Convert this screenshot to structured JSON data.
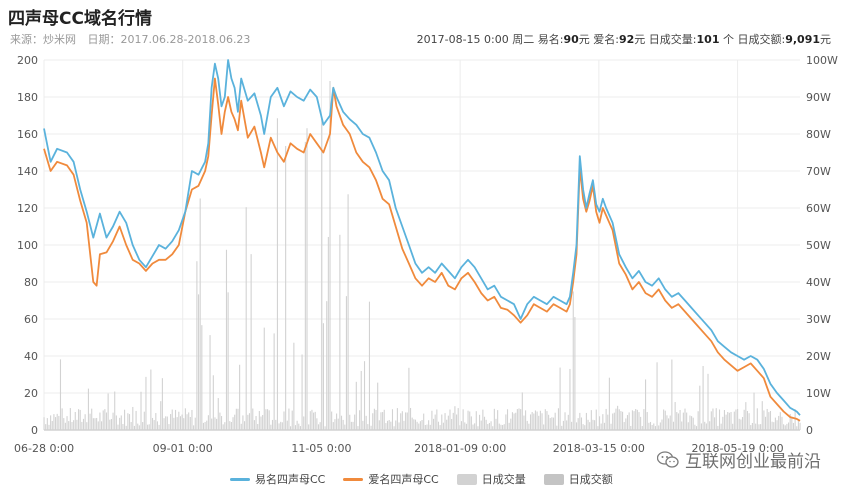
{
  "header": {
    "title": "四声母CC域名行情",
    "source_label": "来源：",
    "source": "炒米网",
    "date_label": "日期：",
    "date_range": "2017.06.28-2018.06.23"
  },
  "info": {
    "datetime": "2017-08-15 0:00 周二",
    "yiming_label": "易名:",
    "yiming_value": "90",
    "yiming_unit": "元",
    "aiming_label": "爱名:",
    "aiming_value": "92",
    "aiming_unit": "元",
    "volume_label": "日成交量:",
    "volume_value": "101",
    "volume_unit": "个",
    "amount_label": "日成交额:",
    "amount_value": "9,091",
    "amount_unit": "元"
  },
  "watermark": {
    "text": "互联网创业最前沿",
    "icon": "wechat-icon"
  },
  "colors": {
    "yiming": "#5ab2dc",
    "aiming": "#f08a3c",
    "volume": "#d2d2d2",
    "amount": "#c4c4c4"
  },
  "chart_data": {
    "type": "line",
    "title": "四声母CC域名行情",
    "x_ticks": [
      "06-28 0:00",
      "09-01 0:00",
      "11-05 0:00",
      "2018-01-09 0:00",
      "2018-03-15 0:00",
      "2018-05-19 0:00"
    ],
    "y_left": {
      "min": 0,
      "max": 200,
      "ticks": [
        0,
        20,
        40,
        60,
        80,
        100,
        120,
        140,
        160,
        180,
        200
      ]
    },
    "y_right": {
      "min": 0,
      "max": 100,
      "ticks": [
        "0",
        "10W",
        "20W",
        "30W",
        "40W",
        "50W",
        "60W",
        "70W",
        "80W",
        "90W",
        "100W"
      ]
    },
    "grid": true,
    "legend_position": "bottom",
    "series": [
      {
        "name": "易名四声母CC",
        "axis": "left",
        "kind": "line",
        "points": [
          [
            0,
            163
          ],
          [
            4,
            145
          ],
          [
            8,
            152
          ],
          [
            14,
            150
          ],
          [
            18,
            145
          ],
          [
            22,
            130
          ],
          [
            26,
            118
          ],
          [
            30,
            104
          ],
          [
            34,
            117
          ],
          [
            38,
            104
          ],
          [
            42,
            110
          ],
          [
            46,
            118
          ],
          [
            50,
            112
          ],
          [
            54,
            100
          ],
          [
            58,
            92
          ],
          [
            62,
            88
          ],
          [
            66,
            94
          ],
          [
            70,
            100
          ],
          [
            74,
            98
          ],
          [
            78,
            102
          ],
          [
            82,
            108
          ],
          [
            86,
            118
          ],
          [
            90,
            140
          ],
          [
            94,
            138
          ],
          [
            98,
            145
          ],
          [
            100,
            155
          ],
          [
            102,
            185
          ],
          [
            104,
            198
          ],
          [
            106,
            190
          ],
          [
            108,
            175
          ],
          [
            110,
            180
          ],
          [
            112,
            200
          ],
          [
            114,
            190
          ],
          [
            116,
            185
          ],
          [
            118,
            172
          ],
          [
            120,
            190
          ],
          [
            124,
            178
          ],
          [
            128,
            182
          ],
          [
            132,
            170
          ],
          [
            134,
            160
          ],
          [
            138,
            180
          ],
          [
            142,
            185
          ],
          [
            146,
            175
          ],
          [
            150,
            183
          ],
          [
            154,
            180
          ],
          [
            158,
            178
          ],
          [
            162,
            184
          ],
          [
            166,
            180
          ],
          [
            170,
            165
          ],
          [
            174,
            170
          ],
          [
            176,
            185
          ],
          [
            178,
            180
          ],
          [
            182,
            172
          ],
          [
            186,
            168
          ],
          [
            190,
            165
          ],
          [
            194,
            160
          ],
          [
            198,
            158
          ],
          [
            202,
            150
          ],
          [
            206,
            140
          ],
          [
            210,
            135
          ],
          [
            214,
            120
          ],
          [
            218,
            110
          ],
          [
            222,
            100
          ],
          [
            226,
            90
          ],
          [
            230,
            85
          ],
          [
            234,
            88
          ],
          [
            238,
            85
          ],
          [
            242,
            90
          ],
          [
            246,
            86
          ],
          [
            250,
            82
          ],
          [
            254,
            88
          ],
          [
            258,
            92
          ],
          [
            262,
            88
          ],
          [
            266,
            82
          ],
          [
            270,
            76
          ],
          [
            274,
            78
          ],
          [
            278,
            72
          ],
          [
            282,
            70
          ],
          [
            286,
            68
          ],
          [
            290,
            60
          ],
          [
            294,
            68
          ],
          [
            298,
            72
          ],
          [
            302,
            70
          ],
          [
            306,
            68
          ],
          [
            310,
            72
          ],
          [
            314,
            70
          ],
          [
            318,
            68
          ],
          [
            320,
            72
          ],
          [
            322,
            85
          ],
          [
            324,
            100
          ],
          [
            326,
            148
          ],
          [
            328,
            130
          ],
          [
            330,
            120
          ],
          [
            332,
            128
          ],
          [
            334,
            135
          ],
          [
            336,
            122
          ],
          [
            338,
            118
          ],
          [
            340,
            125
          ],
          [
            342,
            120
          ],
          [
            346,
            112
          ],
          [
            350,
            95
          ],
          [
            354,
            88
          ],
          [
            358,
            82
          ],
          [
            362,
            86
          ],
          [
            366,
            80
          ],
          [
            370,
            78
          ],
          [
            374,
            82
          ],
          [
            378,
            76
          ],
          [
            382,
            72
          ],
          [
            386,
            74
          ],
          [
            390,
            70
          ],
          [
            394,
            66
          ],
          [
            398,
            62
          ],
          [
            402,
            58
          ],
          [
            406,
            54
          ],
          [
            410,
            48
          ],
          [
            414,
            45
          ],
          [
            418,
            42
          ],
          [
            422,
            40
          ],
          [
            426,
            38
          ],
          [
            430,
            40
          ],
          [
            434,
            38
          ],
          [
            438,
            33
          ],
          [
            442,
            25
          ],
          [
            446,
            20
          ],
          [
            450,
            16
          ],
          [
            454,
            12
          ],
          [
            458,
            10
          ],
          [
            460,
            8
          ]
        ]
      },
      {
        "name": "爱名四声母CC",
        "axis": "left",
        "kind": "line",
        "points": [
          [
            0,
            152
          ],
          [
            4,
            140
          ],
          [
            8,
            145
          ],
          [
            14,
            143
          ],
          [
            18,
            138
          ],
          [
            22,
            124
          ],
          [
            26,
            112
          ],
          [
            30,
            80
          ],
          [
            32,
            78
          ],
          [
            34,
            95
          ],
          [
            38,
            96
          ],
          [
            42,
            102
          ],
          [
            46,
            110
          ],
          [
            50,
            100
          ],
          [
            54,
            92
          ],
          [
            58,
            90
          ],
          [
            62,
            86
          ],
          [
            66,
            90
          ],
          [
            70,
            92
          ],
          [
            74,
            92
          ],
          [
            78,
            95
          ],
          [
            82,
            100
          ],
          [
            86,
            118
          ],
          [
            90,
            130
          ],
          [
            94,
            132
          ],
          [
            98,
            140
          ],
          [
            100,
            148
          ],
          [
            102,
            170
          ],
          [
            104,
            190
          ],
          [
            106,
            176
          ],
          [
            108,
            160
          ],
          [
            110,
            172
          ],
          [
            112,
            180
          ],
          [
            114,
            172
          ],
          [
            116,
            168
          ],
          [
            118,
            162
          ],
          [
            120,
            178
          ],
          [
            124,
            158
          ],
          [
            128,
            164
          ],
          [
            132,
            150
          ],
          [
            134,
            142
          ],
          [
            138,
            158
          ],
          [
            142,
            150
          ],
          [
            146,
            145
          ],
          [
            150,
            155
          ],
          [
            154,
            152
          ],
          [
            158,
            150
          ],
          [
            162,
            160
          ],
          [
            166,
            155
          ],
          [
            170,
            150
          ],
          [
            174,
            160
          ],
          [
            176,
            185
          ],
          [
            178,
            175
          ],
          [
            182,
            165
          ],
          [
            186,
            160
          ],
          [
            190,
            150
          ],
          [
            194,
            145
          ],
          [
            198,
            142
          ],
          [
            202,
            135
          ],
          [
            206,
            125
          ],
          [
            210,
            122
          ],
          [
            214,
            110
          ],
          [
            218,
            98
          ],
          [
            222,
            90
          ],
          [
            226,
            82
          ],
          [
            230,
            78
          ],
          [
            234,
            82
          ],
          [
            238,
            80
          ],
          [
            242,
            85
          ],
          [
            246,
            78
          ],
          [
            250,
            76
          ],
          [
            254,
            82
          ],
          [
            258,
            85
          ],
          [
            262,
            80
          ],
          [
            266,
            74
          ],
          [
            270,
            70
          ],
          [
            274,
            72
          ],
          [
            278,
            66
          ],
          [
            282,
            65
          ],
          [
            286,
            62
          ],
          [
            290,
            58
          ],
          [
            294,
            62
          ],
          [
            298,
            68
          ],
          [
            302,
            66
          ],
          [
            306,
            64
          ],
          [
            310,
            68
          ],
          [
            314,
            66
          ],
          [
            318,
            64
          ],
          [
            320,
            68
          ],
          [
            322,
            80
          ],
          [
            324,
            95
          ],
          [
            326,
            142
          ],
          [
            328,
            125
          ],
          [
            330,
            118
          ],
          [
            332,
            124
          ],
          [
            334,
            132
          ],
          [
            336,
            118
          ],
          [
            338,
            112
          ],
          [
            340,
            120
          ],
          [
            342,
            116
          ],
          [
            346,
            108
          ],
          [
            350,
            90
          ],
          [
            354,
            84
          ],
          [
            358,
            76
          ],
          [
            362,
            80
          ],
          [
            366,
            74
          ],
          [
            370,
            72
          ],
          [
            374,
            76
          ],
          [
            378,
            70
          ],
          [
            382,
            66
          ],
          [
            386,
            68
          ],
          [
            390,
            64
          ],
          [
            394,
            60
          ],
          [
            398,
            56
          ],
          [
            402,
            52
          ],
          [
            406,
            48
          ],
          [
            410,
            42
          ],
          [
            414,
            38
          ],
          [
            418,
            35
          ],
          [
            422,
            32
          ],
          [
            426,
            34
          ],
          [
            430,
            36
          ],
          [
            434,
            32
          ],
          [
            438,
            28
          ],
          [
            442,
            18
          ],
          [
            446,
            14
          ],
          [
            450,
            10
          ],
          [
            454,
            7
          ],
          [
            458,
            6
          ],
          [
            460,
            5
          ]
        ]
      },
      {
        "name": "日成交量",
        "axis": "left",
        "kind": "bar",
        "note": "daily volume bars"
      },
      {
        "name": "日成交额",
        "axis": "right",
        "kind": "bar",
        "note": "daily amount bars"
      }
    ]
  }
}
